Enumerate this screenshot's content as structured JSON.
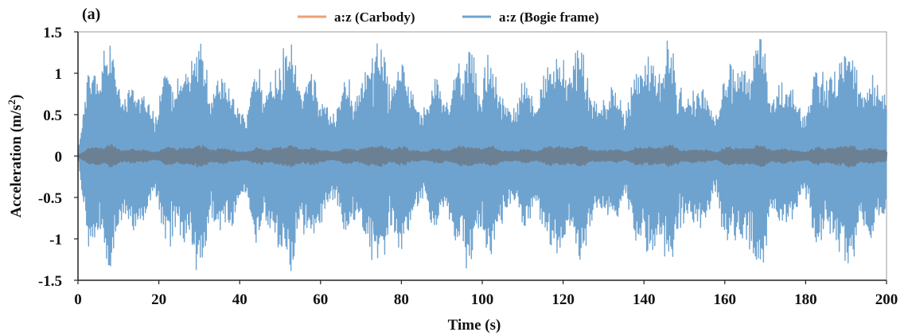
{
  "chart_data": {
    "type": "line",
    "panel_label": "(a)",
    "title": "",
    "xlabel": "Time (s)",
    "ylabel_main": "Acceleration (m/s",
    "ylabel_sup": "2",
    "ylabel_close": ")",
    "xlim": [
      0,
      200
    ],
    "ylim": [
      -1.5,
      1.5
    ],
    "x_ticks": [
      0,
      20,
      40,
      60,
      80,
      100,
      120,
      140,
      160,
      180,
      200
    ],
    "x_tick_labels": [
      "0",
      "20",
      "40",
      "60",
      "80",
      "100",
      "120",
      "140",
      "160",
      "180",
      "200"
    ],
    "y_ticks": [
      1.5,
      1,
      0.5,
      0,
      -0.5,
      -1,
      -1.5
    ],
    "y_tick_labels": [
      "1.5",
      "1",
      "0.5",
      "0",
      "-0.5",
      "-1",
      "-1.5"
    ],
    "grid": false,
    "legend_position": "top-center",
    "series": [
      {
        "name": "a:z (Carbody)",
        "color": "#e8a27a",
        "signal": {
          "kind": "oscillation",
          "freq_hz": 0.78,
          "amplitude": 0.08,
          "envelope_max": 0.16,
          "t_start": 0,
          "t_end": 200
        }
      },
      {
        "name": "a:z (Bogie frame)",
        "color": "#6fa3cf",
        "signal": {
          "kind": "oscillation",
          "freq_hz": 0.78,
          "amplitude": 0.85,
          "envelope_max": 1.22,
          "envelope_min": 0.55,
          "t_start": 0,
          "t_end": 200
        }
      }
    ],
    "overlap_color": "#6b7c8c"
  }
}
